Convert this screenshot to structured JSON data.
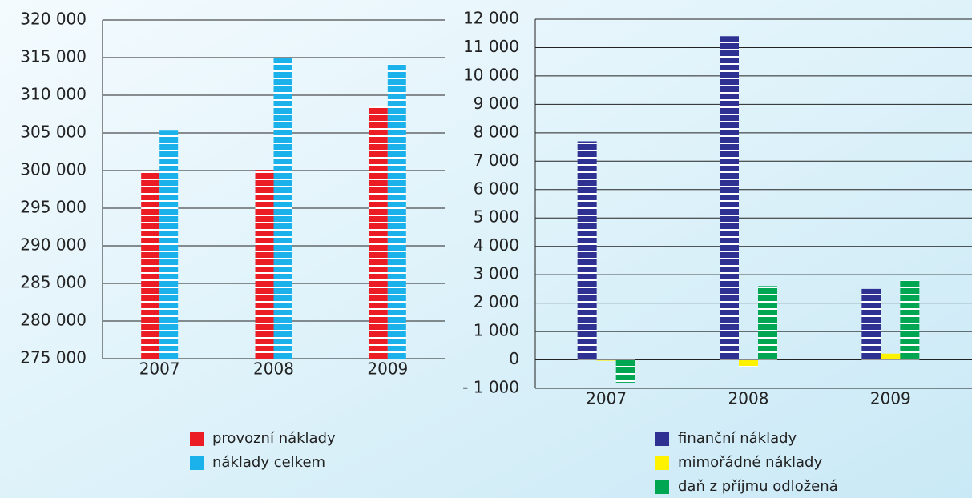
{
  "chart_data": [
    {
      "type": "bar",
      "categories": [
        "2007",
        "2008",
        "2009"
      ],
      "series": [
        {
          "name": "provozní náklady",
          "color": "#ec1c24",
          "values": [
            299900,
            300100,
            308500
          ]
        },
        {
          "name": "náklady celkem",
          "color": "#1bb1ea",
          "values": [
            305400,
            315000,
            314100
          ]
        }
      ],
      "ylim": [
        275000,
        320000
      ],
      "yticks": [
        {
          "value": 275000,
          "label": "275 000"
        },
        {
          "value": 280000,
          "label": "280 000"
        },
        {
          "value": 285000,
          "label": "285 000"
        },
        {
          "value": 290000,
          "label": "290 000"
        },
        {
          "value": 295000,
          "label": "295 000"
        },
        {
          "value": 300000,
          "label": "300 000"
        },
        {
          "value": 305000,
          "label": "305 000"
        },
        {
          "value": 310000,
          "label": "310 000"
        },
        {
          "value": 315000,
          "label": "315 000"
        },
        {
          "value": 320000,
          "label": "320 000"
        }
      ],
      "grid": true
    },
    {
      "type": "bar",
      "categories": [
        "2007",
        "2008",
        "2009"
      ],
      "series": [
        {
          "name": "finanční náklady",
          "color": "#2e3192",
          "values": [
            7700,
            11400,
            2500
          ]
        },
        {
          "name": "mimořádné náklady",
          "color": "#fff200",
          "values": [
            -30,
            -250,
            220
          ]
        },
        {
          "name": "daň z příjmu odložená",
          "color": "#00a651",
          "values": [
            -800,
            2600,
            2800
          ]
        }
      ],
      "ylim": [
        -1000,
        12000
      ],
      "yticks": [
        {
          "value": -1000,
          "label": "- 1 000"
        },
        0,
        {
          "value": 1000,
          "label": "1 000"
        },
        {
          "value": 2000,
          "label": "2 000"
        },
        {
          "value": 3000,
          "label": "3 000"
        },
        {
          "value": 4000,
          "label": "4 000"
        },
        {
          "value": 5000,
          "label": "5 000"
        },
        {
          "value": 6000,
          "label": "6 000"
        },
        {
          "value": 7000,
          "label": "7 000"
        },
        {
          "value": 8000,
          "label": "8 000"
        },
        {
          "value": 9000,
          "label": "9 000"
        },
        {
          "value": 10000,
          "label": "10 000"
        },
        {
          "value": 11000,
          "label": "11 000"
        },
        {
          "value": 12000,
          "label": "12 000"
        }
      ],
      "grid": true
    }
  ]
}
